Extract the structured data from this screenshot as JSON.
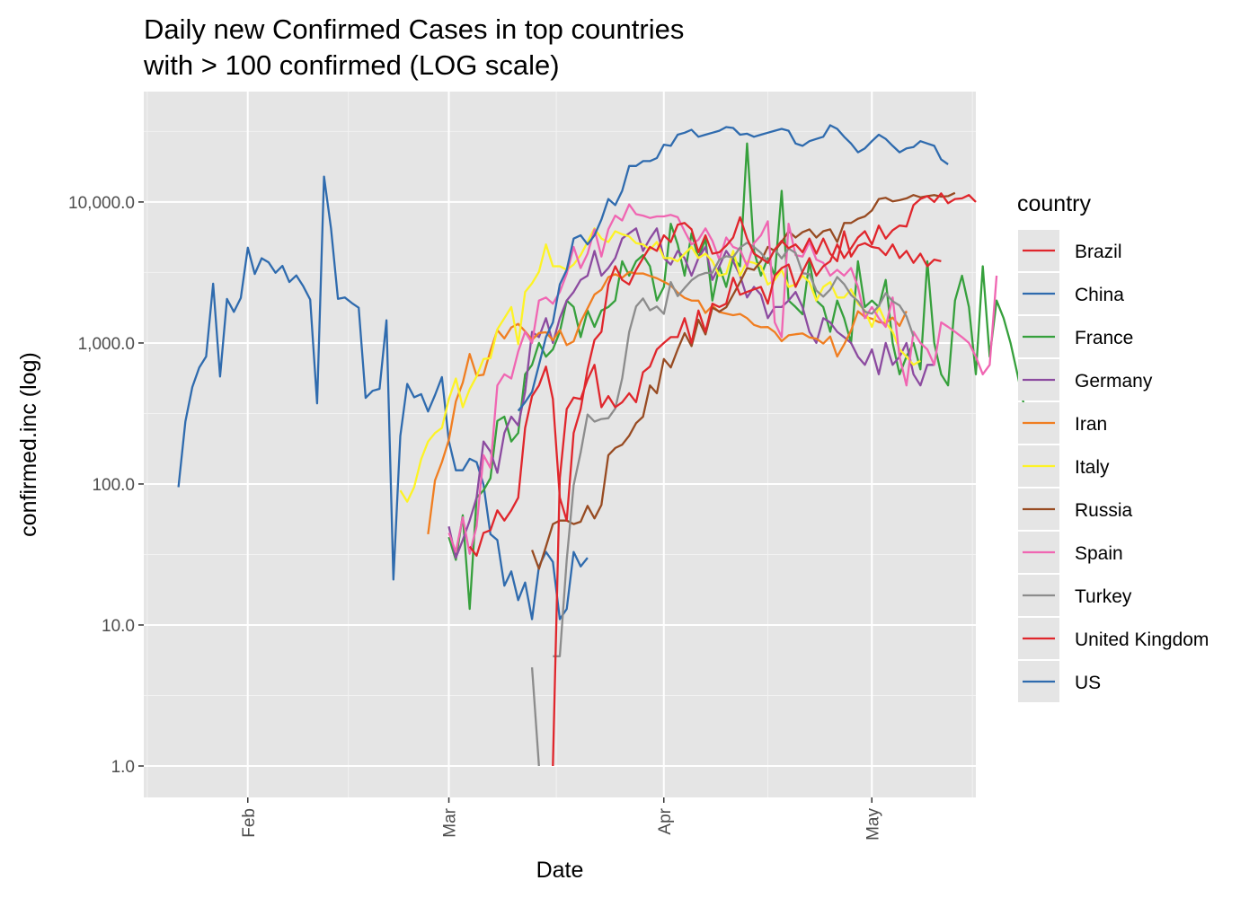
{
  "chart_data": {
    "type": "line",
    "title": "Daily new Confirmed Cases in top countries",
    "subtitle": "with >  100  confirmed (LOG scale)",
    "xlabel": "Date",
    "ylabel": "confirmed.inc (log)",
    "y_scale": "log10",
    "ylim": [
      1,
      50000
    ],
    "xlim": [
      "2020-01-17",
      "2020-05-16"
    ],
    "y_ticks": [
      1,
      10,
      100,
      1000,
      10000
    ],
    "y_tick_labels": [
      "1.0",
      "10.0",
      "100.0",
      "1,000.0",
      "10,000.0"
    ],
    "x_ticks": [
      "2020-02-01",
      "2020-03-01",
      "2020-04-01",
      "2020-05-01"
    ],
    "x_tick_labels": [
      "Feb",
      "Mar",
      "Apr",
      "May"
    ],
    "background": "#e5e5e5",
    "grid": true,
    "legend": {
      "title": "country",
      "position": "right"
    },
    "series": [
      {
        "name": "China",
        "color": "#2f6bae",
        "start": "2020-01-22",
        "values": [
          95,
          277,
          486,
          669,
          802,
          2632,
          578,
          2054,
          1661,
          2089,
          4739,
          3086,
          3991,
          3733,
          3147,
          3523,
          2704,
          3015,
          2525,
          2032,
          373,
          15152,
          6484,
          2055,
          2100,
          1921,
          1777,
          408,
          458,
          473,
          1451,
          21,
          219,
          513,
          412,
          434,
          327,
          427,
          573,
          202,
          125,
          125,
          151,
          143,
          99,
          44,
          40,
          19,
          24,
          15,
          20,
          11,
          26,
          33,
          28,
          11,
          13,
          33,
          26,
          30
        ]
      },
      {
        "name": "US",
        "color": "#2f6bae",
        "start": "2020-03-11",
        "values": [
          330,
          380,
          450,
          700,
          1100,
          1400,
          2600,
          3300,
          5500,
          5800,
          5000,
          5800,
          7500,
          10500,
          9500,
          12000,
          18000,
          18000,
          19500,
          19500,
          20500,
          25500,
          25000,
          30000,
          31000,
          32500,
          29000,
          30000,
          31000,
          32000,
          34000,
          33500,
          30000,
          30500,
          29000,
          30000,
          31000,
          32000,
          33000,
          32000,
          26000,
          25000,
          27000,
          28000,
          29000,
          35000,
          33000,
          29000,
          26000,
          22500,
          24000,
          27000,
          30000,
          28000,
          25000,
          22500,
          24000,
          24500,
          27000,
          26000,
          25000,
          20000,
          18500
        ]
      },
      {
        "name": "France",
        "color": "#36a03c",
        "start": "2020-03-01",
        "values": [
          42,
          29,
          60,
          13,
          80,
          90,
          110,
          280,
          300,
          200,
          230,
          600,
          700,
          1000,
          800,
          900,
          1200,
          2000,
          1800,
          1100,
          1700,
          1300,
          1700,
          1800,
          2000,
          3800,
          3000,
          3800,
          4200,
          3500,
          2000,
          2500,
          7000,
          5000,
          3000,
          6000,
          4000,
          5500,
          2000,
          3500,
          2500,
          4000,
          3500,
          26000,
          4500,
          3000,
          4000,
          3000,
          12000,
          2000,
          1800,
          1600,
          3800,
          2000,
          1800,
          1200,
          2000,
          1500,
          1000,
          3800,
          1800,
          2000,
          1800,
          2800,
          1000,
          600,
          800,
          1000,
          650,
          3800,
          1000,
          600,
          500,
          2000,
          3000,
          1800,
          600,
          3500,
          800,
          2000,
          1500,
          1000,
          600,
          350,
          300,
          300
        ]
      },
      {
        "name": "Germany",
        "color": "#8c4ba0",
        "start": "2020-03-01",
        "values": [
          50,
          30,
          40,
          55,
          80,
          200,
          170,
          120,
          230,
          300,
          260,
          450,
          1200,
          1100,
          1500,
          1000,
          1500,
          2000,
          2300,
          2800,
          3000,
          4500,
          3000,
          3400,
          4000,
          5500,
          6000,
          6500,
          4500,
          5500,
          6500,
          4000,
          3600,
          4500,
          4000,
          3000,
          4000,
          4800,
          2800,
          3500,
          4500,
          3800,
          3000,
          2100,
          2500,
          2200,
          1500,
          1800,
          1800,
          2000,
          2300,
          1800,
          1200,
          1000,
          1500,
          1400,
          1200,
          1100,
          1000,
          800,
          700,
          900,
          600,
          1000,
          700,
          800,
          1000,
          600,
          500,
          700,
          700
        ]
      },
      {
        "name": "Iran",
        "color": "#f07e21",
        "start": "2020-02-27",
        "values": [
          44,
          106,
          143,
          205,
          385,
          523,
          835,
          586,
          595,
          881,
          1234,
          1076,
          1289,
          1365,
          1209,
          1053,
          1178,
          1192,
          1046,
          1237,
          966,
          1028,
          1411,
          1762,
          2206,
          2389,
          2926,
          3076,
          2901,
          3186,
          3110,
          3111,
          2988,
          2875,
          2715,
          2560,
          2274,
          2089,
          2000,
          1997,
          1634,
          1837,
          1657,
          1617,
          1574,
          1606,
          1499,
          1343,
          1294,
          1297,
          1194,
          1030,
          1134,
          1153,
          1168,
          1096,
          1073,
          991,
          1112,
          802,
          976,
          1223,
          1680,
          1529,
          1487,
          1406,
          1383,
          1513,
          1323,
          1681
        ]
      },
      {
        "name": "Italy",
        "color": "#fdf325",
        "start": "2020-02-23",
        "values": [
          90,
          75,
          95,
          150,
          200,
          230,
          250,
          400,
          560,
          350,
          470,
          580,
          770,
          780,
          1250,
          1500,
          1800,
          980,
          2300,
          2650,
          3200,
          5000,
          3500,
          3500,
          3300,
          3600,
          4200,
          5200,
          6500,
          5500,
          5200,
          6200,
          5900,
          5700,
          5100,
          5000,
          4600,
          5200,
          4000,
          4000,
          3800,
          4300,
          4800,
          4000,
          4300,
          3800,
          3000,
          3100,
          4500,
          3000,
          3800,
          3700,
          3500,
          2600,
          2800,
          3300,
          2500,
          2600,
          3000,
          2700,
          2000,
          2500,
          2700,
          2100,
          2100,
          2400,
          1900,
          1700,
          1300,
          1800,
          1400,
          1200,
          900,
          800,
          700,
          750
        ]
      },
      {
        "name": "Russia",
        "color": "#984b22",
        "start": "2020-03-13",
        "values": [
          34,
          25,
          36,
          52,
          55,
          55,
          52,
          54,
          70,
          57,
          71,
          160,
          180,
          190,
          220,
          270,
          300,
          500,
          440,
          770,
          670,
          900,
          1175,
          950,
          1460,
          1150,
          1780,
          1670,
          1790,
          2200,
          2700,
          3400,
          3300,
          3800,
          4800,
          4500,
          5200,
          6200,
          5600,
          6100,
          6400,
          5600,
          6200,
          6400,
          5200,
          7100,
          7100,
          7600,
          7900,
          8700,
          10500,
          10700,
          10100,
          10300,
          10600,
          11200,
          10800,
          11000,
          11200,
          10900,
          11000,
          11600
        ]
      },
      {
        "name": "Spain",
        "color": "#f066b2",
        "start": "2020-03-01",
        "values": [
          45,
          33,
          58,
          32,
          50,
          160,
          130,
          500,
          600,
          560,
          870,
          1200,
          1000,
          2000,
          2100,
          1900,
          2300,
          3100,
          4800,
          3400,
          4300,
          6400,
          4100,
          6400,
          8000,
          7400,
          9600,
          8200,
          8000,
          7700,
          7900,
          7900,
          8100,
          7800,
          6200,
          5000,
          5400,
          6500,
          5300,
          3900,
          5600,
          4800,
          4600,
          3500,
          5100,
          5800,
          7300,
          1400,
          1100,
          7000,
          4200,
          4100,
          5200,
          3900,
          3700,
          3000,
          3300,
          3000,
          3400,
          2500,
          1500,
          1800,
          1500,
          1300,
          2100,
          800,
          500,
          1200,
          1000,
          900,
          700,
          1400,
          1300,
          1200,
          1100,
          1000,
          800,
          600,
          700,
          3000
        ]
      },
      {
        "name": "Turkey",
        "color": "#8c8c8c",
        "start": "2020-03-13",
        "values": [
          5,
          1,
          0,
          6,
          6,
          29,
          98,
          167,
          311,
          277,
          289,
          293,
          343,
          561,
          1196,
          1815,
          2069,
          1704,
          1815,
          1610,
          2704,
          2148,
          2456,
          2786,
          3013,
          3135,
          3148,
          3892,
          4117,
          4056,
          4747,
          5138,
          4801,
          4353,
          3783,
          4611,
          3977,
          4674,
          4353,
          3122,
          3083,
          2357,
          2131,
          2392,
          2936,
          2615,
          2188,
          1983,
          1670,
          1614,
          1832,
          2253,
          1977,
          1848,
          1546,
          1114
        ]
      },
      {
        "name": "Brazil",
        "color": "#e0262c",
        "start": "2020-03-14",
        "values": [
          98,
          0,
          1,
          110,
          340,
          410,
          400,
          550,
          700,
          350,
          420,
          350,
          380,
          440,
          380,
          620,
          680,
          900,
          1000,
          1100,
          1100,
          1500,
          1000,
          1700,
          1200,
          1900,
          1800,
          1900,
          2900,
          2200,
          2300,
          2400,
          2500,
          1900,
          3000,
          3400,
          3600,
          2500,
          3200,
          4000,
          3000,
          3500,
          3800,
          5000,
          4000,
          4700,
          5600,
          6200,
          5000,
          6800,
          5500,
          6300,
          6800,
          6700,
          9500,
          10500,
          11000,
          10000,
          11500,
          9800,
          10500,
          10600,
          11200,
          10000
        ]
      },
      {
        "name": "United Kingdom",
        "color": "#e0262c",
        "start": "2020-03-04",
        "values": [
          36,
          31,
          45,
          47,
          65,
          55,
          65,
          80,
          250,
          420,
          500,
          680,
          400,
          80,
          55,
          230,
          340,
          650,
          1050,
          1200,
          2600,
          3500,
          2800,
          2600,
          3300,
          4000,
          4800,
          4500,
          5800,
          5200,
          6900,
          7100,
          6400,
          4400,
          5800,
          4300,
          4400,
          4900,
          5600,
          7800,
          5500,
          4300,
          4000,
          3700,
          4600,
          5300,
          4700,
          5000,
          4400,
          5500,
          4300,
          5500,
          4300,
          3800,
          6200,
          4100,
          4900,
          5100,
          4800,
          4700,
          4200,
          5000,
          4000,
          4500,
          3700,
          4300,
          3500,
          3900,
          3800
        ]
      }
    ]
  }
}
